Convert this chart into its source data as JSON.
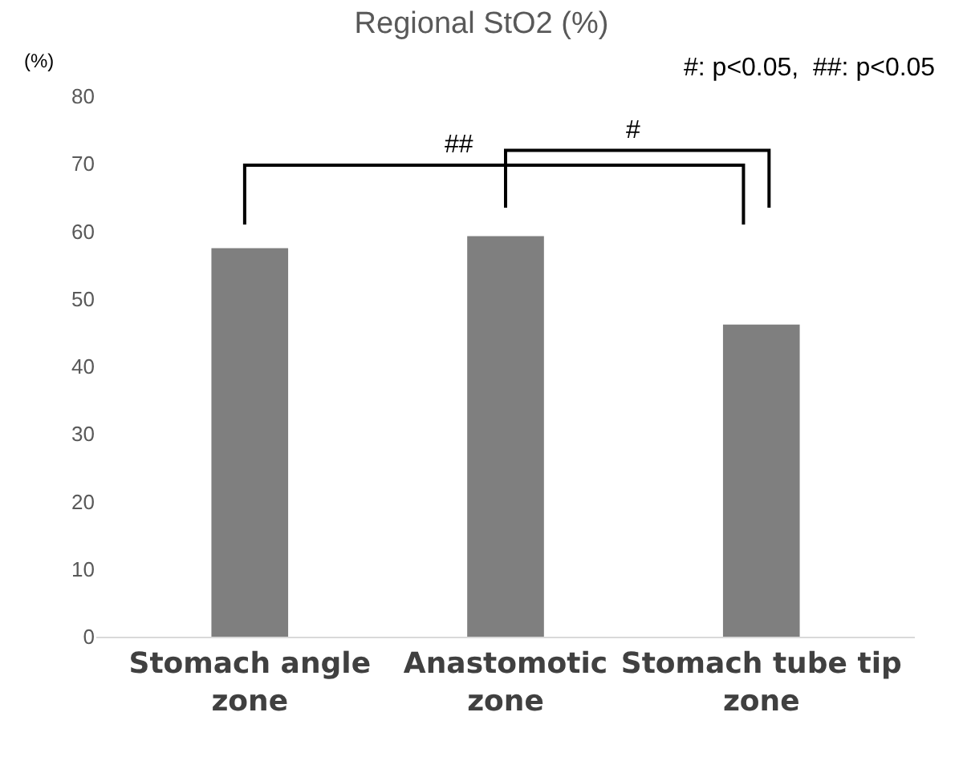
{
  "chart_data": {
    "type": "bar",
    "title": "Regional StO2 (%)",
    "ylabel": "(%)",
    "categories": [
      "Stomach angle zone",
      "Anastomotic zone",
      "Stomach tube tip zone"
    ],
    "values": [
      57.5,
      59.3,
      46.2
    ],
    "color": "#7f7f7f",
    "ylim": [
      0,
      80
    ],
    "yticks": [
      0,
      10,
      20,
      30,
      40,
      50,
      60,
      70,
      80
    ],
    "grid": false,
    "legend": false,
    "annotations": [
      "#: p<0.05,  ##: p<0.05",
      "##",
      "#"
    ]
  }
}
